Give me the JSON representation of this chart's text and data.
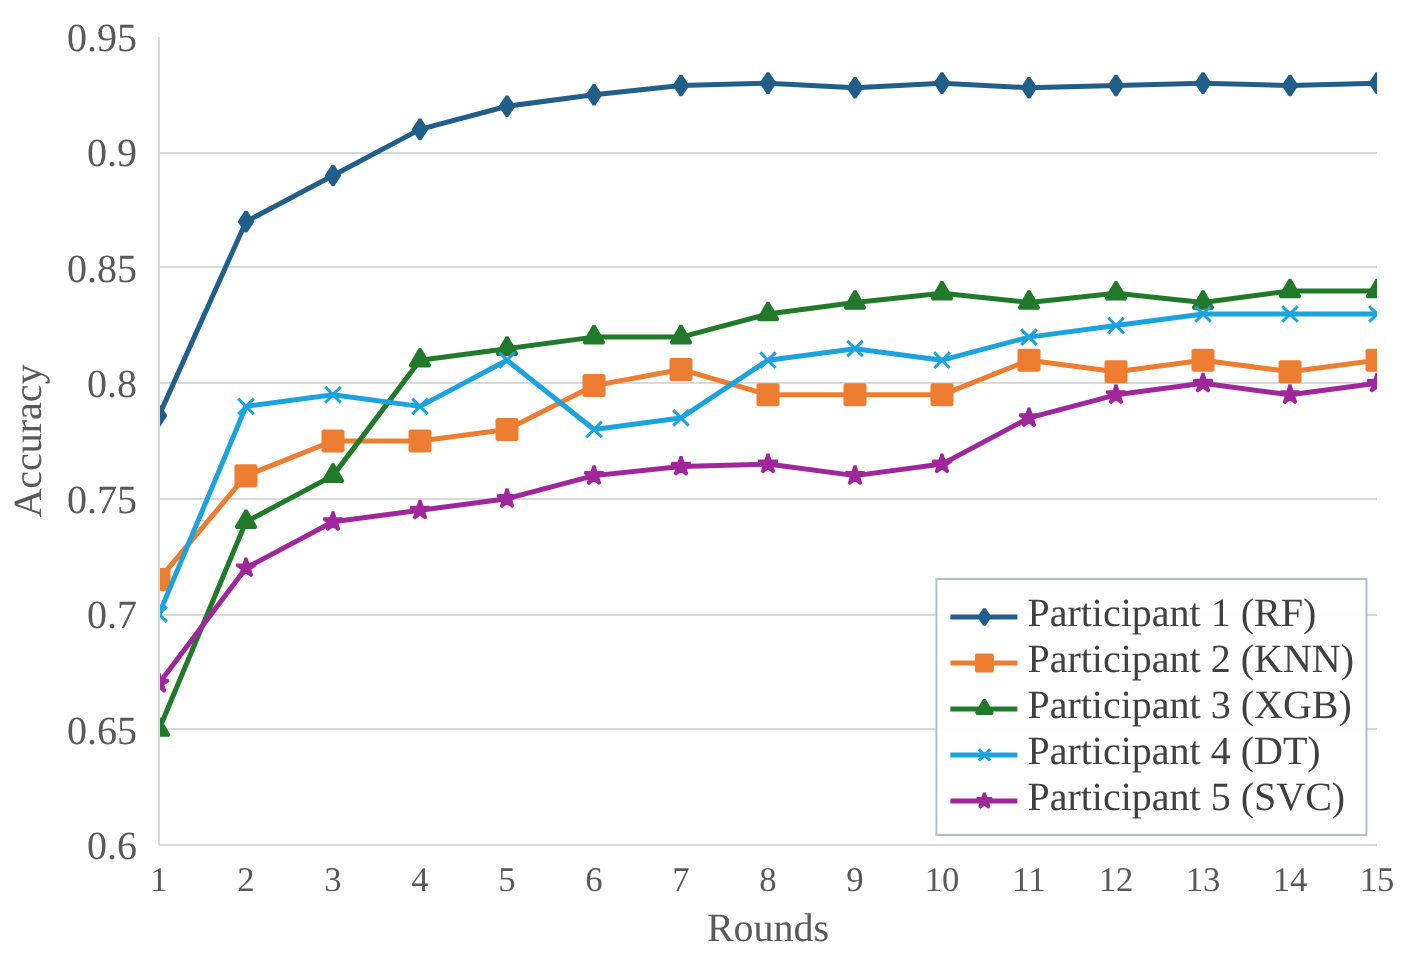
{
  "chart_data": {
    "type": "line",
    "xlabel": "Rounds",
    "ylabel": "Accuracy",
    "x": [
      1,
      2,
      3,
      4,
      5,
      6,
      7,
      8,
      9,
      10,
      11,
      12,
      13,
      14,
      15
    ],
    "xlim": [
      1,
      15
    ],
    "xticks": [
      1,
      2,
      3,
      4,
      5,
      6,
      7,
      8,
      9,
      10,
      11,
      12,
      13,
      14,
      15
    ],
    "ylim": [
      0.6,
      0.95
    ],
    "yticks": [
      0.6,
      0.65,
      0.7,
      0.75,
      0.8,
      0.85,
      0.9,
      0.95
    ],
    "grid": "y",
    "legend": "bottom right",
    "line_style": "solid",
    "series": [
      {
        "name": "Participant 1 (RF)",
        "color": "#215f8a",
        "marker": "diamond",
        "values": [
          0.786,
          0.87,
          0.89,
          0.91,
          0.92,
          0.925,
          0.929,
          0.93,
          0.928,
          0.93,
          0.928,
          0.929,
          0.93,
          0.929,
          0.93
        ]
      },
      {
        "name": "Participant 2 (KNN)",
        "color": "#ed7d31",
        "marker": "square",
        "values": [
          0.715,
          0.76,
          0.775,
          0.775,
          0.78,
          0.799,
          0.806,
          0.795,
          0.795,
          0.795,
          0.81,
          0.805,
          0.81,
          0.805,
          0.81
        ]
      },
      {
        "name": "Participant 3 (XGB)",
        "color": "#217a2a",
        "marker": "triangle",
        "values": [
          0.65,
          0.74,
          0.76,
          0.81,
          0.815,
          0.82,
          0.82,
          0.83,
          0.835,
          0.839,
          0.835,
          0.839,
          0.835,
          0.84,
          0.84
        ]
      },
      {
        "name": "Participant 4 (DT)",
        "color": "#1aa3dc",
        "marker": "cross",
        "values": [
          0.7,
          0.79,
          0.795,
          0.79,
          0.81,
          0.78,
          0.785,
          0.81,
          0.815,
          0.81,
          0.82,
          0.825,
          0.83,
          0.83,
          0.83
        ]
      },
      {
        "name": "Participant 5 (SVC)",
        "color": "#a0279b",
        "marker": "star",
        "values": [
          0.67,
          0.72,
          0.74,
          0.745,
          0.75,
          0.76,
          0.764,
          0.765,
          0.76,
          0.765,
          0.785,
          0.795,
          0.8,
          0.795,
          0.8
        ]
      }
    ]
  }
}
